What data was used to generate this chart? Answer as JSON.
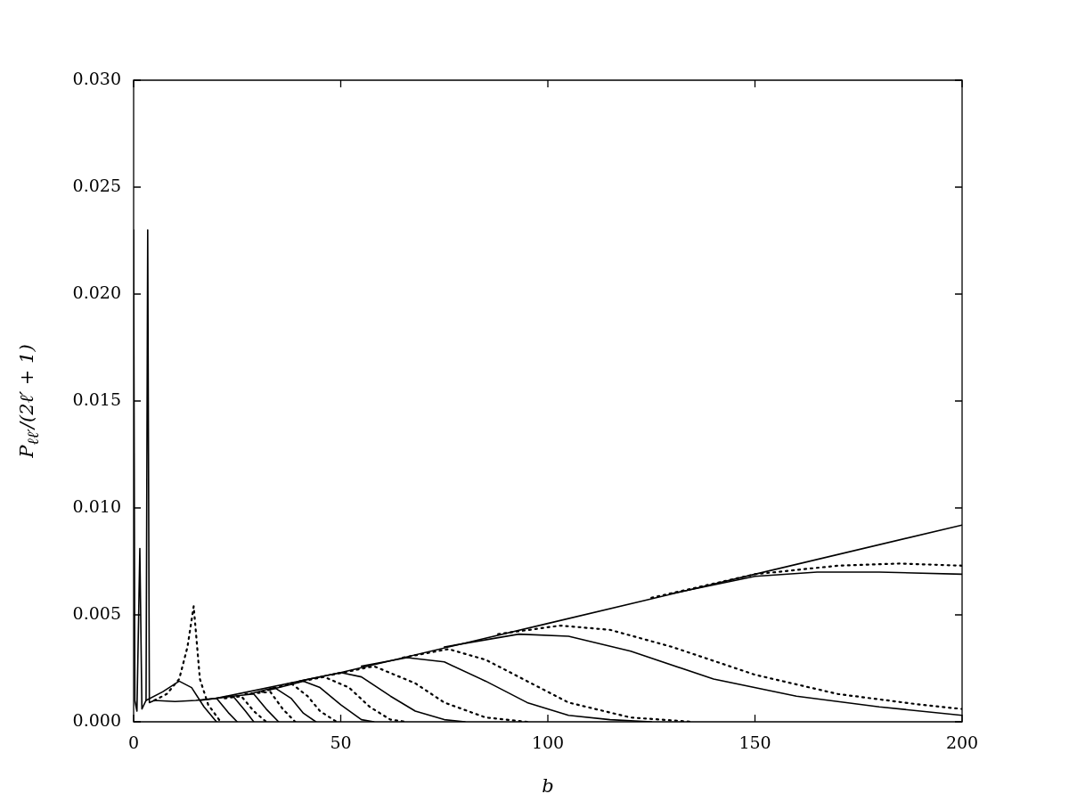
{
  "chart_data": {
    "type": "line",
    "xlabel": "b",
    "ylabel": "P$_{ℓℓ′}$/(2ℓ′ + 1)",
    "xlim": [
      0,
      200
    ],
    "ylim": [
      0,
      0.03
    ],
    "xticks": [
      0,
      50,
      100,
      150,
      200
    ],
    "yticks": [
      {
        "value": 0,
        "label": "0.000"
      },
      {
        "value": 0.005,
        "label": "0.005"
      },
      {
        "value": 0.01,
        "label": "0.010"
      },
      {
        "value": 0.015,
        "label": "0.015"
      },
      {
        "value": 0.02,
        "label": "0.020"
      },
      {
        "value": 0.025,
        "label": "0.025"
      },
      {
        "value": 0.03,
        "label": "0.030"
      }
    ],
    "grid": false,
    "legend": false,
    "marker": "none",
    "series": [
      {
        "color": "#000000",
        "line_style": "solid",
        "x": [
          0,
          0.3,
          0.8,
          1.5,
          2,
          3,
          3.4,
          3.8,
          5,
          10,
          15,
          20,
          50,
          100,
          150,
          200
        ],
        "values": [
          0.023,
          0.001,
          0.0005,
          0.0081,
          0.0006,
          0.001,
          0.023,
          0.0009,
          0.001,
          0.00095,
          0.001,
          0.0011,
          0.0023,
          0.0046,
          0.0069,
          0.0092
        ]
      },
      {
        "color": "#000000",
        "line_style": "solid",
        "x": [
          130,
          150,
          165,
          180,
          200
        ],
        "values": [
          0.006,
          0.0068,
          0.007,
          0.007,
          0.0069
        ]
      },
      {
        "color": "#000000",
        "line_style": "dotted",
        "x": [
          125,
          150,
          170,
          185,
          200
        ],
        "values": [
          0.0058,
          0.0069,
          0.0073,
          0.0074,
          0.0073
        ]
      },
      {
        "color": "#000000",
        "line_style": "solid",
        "x": [
          75,
          93,
          105,
          120,
          140,
          160,
          180,
          200
        ],
        "values": [
          0.0035,
          0.0041,
          0.004,
          0.0033,
          0.002,
          0.0012,
          0.0007,
          0.0003
        ]
      },
      {
        "color": "#000000",
        "line_style": "dotted",
        "x": [
          88,
          103,
          115,
          130,
          150,
          170,
          190,
          200
        ],
        "values": [
          0.0041,
          0.0045,
          0.0043,
          0.0035,
          0.0022,
          0.0013,
          0.0008,
          0.0006
        ]
      },
      {
        "color": "#000000",
        "line_style": "solid",
        "x": [
          55,
          66,
          75,
          85,
          95,
          105,
          115,
          125
        ],
        "values": [
          0.0026,
          0.003,
          0.0028,
          0.0019,
          0.0009,
          0.0003,
          0.0001,
          0
        ]
      },
      {
        "color": "#000000",
        "line_style": "dotted",
        "x": [
          65,
          76,
          85,
          95,
          105,
          120,
          135
        ],
        "values": [
          0.003,
          0.0034,
          0.0029,
          0.0019,
          0.0009,
          0.0002,
          0
        ]
      },
      {
        "color": "#000000",
        "line_style": "solid",
        "x": [
          40,
          50,
          55,
          62,
          68,
          75,
          80
        ],
        "values": [
          0.0019,
          0.0023,
          0.0021,
          0.0012,
          0.0005,
          0.0001,
          0
        ]
      },
      {
        "color": "#000000",
        "line_style": "dotted",
        "x": [
          48,
          58,
          68,
          75,
          85,
          95
        ],
        "values": [
          0.0022,
          0.0026,
          0.0018,
          0.0009,
          0.0002,
          0
        ]
      },
      {
        "color": "#000000",
        "line_style": "solid",
        "x": [
          33,
          41,
          45,
          50,
          55,
          58
        ],
        "values": [
          0.0015,
          0.0019,
          0.0016,
          0.0008,
          0.0001,
          0
        ]
      },
      {
        "color": "#000000",
        "line_style": "dotted",
        "x": [
          38,
          46,
          52,
          57,
          62,
          66
        ],
        "values": [
          0.0018,
          0.0021,
          0.0016,
          0.0007,
          0.0001,
          0
        ]
      },
      {
        "color": "#000000",
        "line_style": "solid",
        "x": [
          28,
          34,
          38,
          41,
          44
        ],
        "values": [
          0.0013,
          0.0016,
          0.0011,
          0.0004,
          0
        ]
      },
      {
        "color": "#000000",
        "line_style": "dotted",
        "x": [
          31,
          38,
          42,
          45,
          49
        ],
        "values": [
          0.0014,
          0.0018,
          0.0012,
          0.0005,
          0
        ]
      },
      {
        "color": "#000000",
        "line_style": "solid",
        "x": [
          24,
          29,
          32,
          35
        ],
        "values": [
          0.0012,
          0.0013,
          0.0006,
          0
        ]
      },
      {
        "color": "#000000",
        "line_style": "dotted",
        "x": [
          27,
          33,
          36,
          39
        ],
        "values": [
          0.0013,
          0.0014,
          0.0006,
          0
        ]
      },
      {
        "color": "#000000",
        "line_style": "solid",
        "x": [
          20,
          24,
          27,
          29
        ],
        "values": [
          0.0011,
          0.0012,
          0.0005,
          0
        ]
      },
      {
        "color": "#000000",
        "line_style": "dotted",
        "x": [
          22,
          26,
          29,
          32
        ],
        "values": [
          0.0011,
          0.0012,
          0.0005,
          0
        ]
      },
      {
        "color": "#000000",
        "line_style": "solid",
        "x": [
          16,
          20,
          23,
          25
        ],
        "values": [
          0.001,
          0.0011,
          0.0004,
          0
        ]
      },
      {
        "color": "#000000",
        "line_style": "solid",
        "x": [
          3,
          7,
          11,
          14,
          17,
          20
        ],
        "values": [
          0.001,
          0.0014,
          0.0019,
          0.0016,
          0.0007,
          0
        ]
      },
      {
        "color": "#000000",
        "line_style": "dotted",
        "x": [
          5,
          8,
          11,
          13,
          14.5,
          16,
          18,
          21
        ],
        "values": [
          0.001,
          0.0013,
          0.002,
          0.0035,
          0.0054,
          0.002,
          0.0008,
          0
        ]
      }
    ]
  }
}
